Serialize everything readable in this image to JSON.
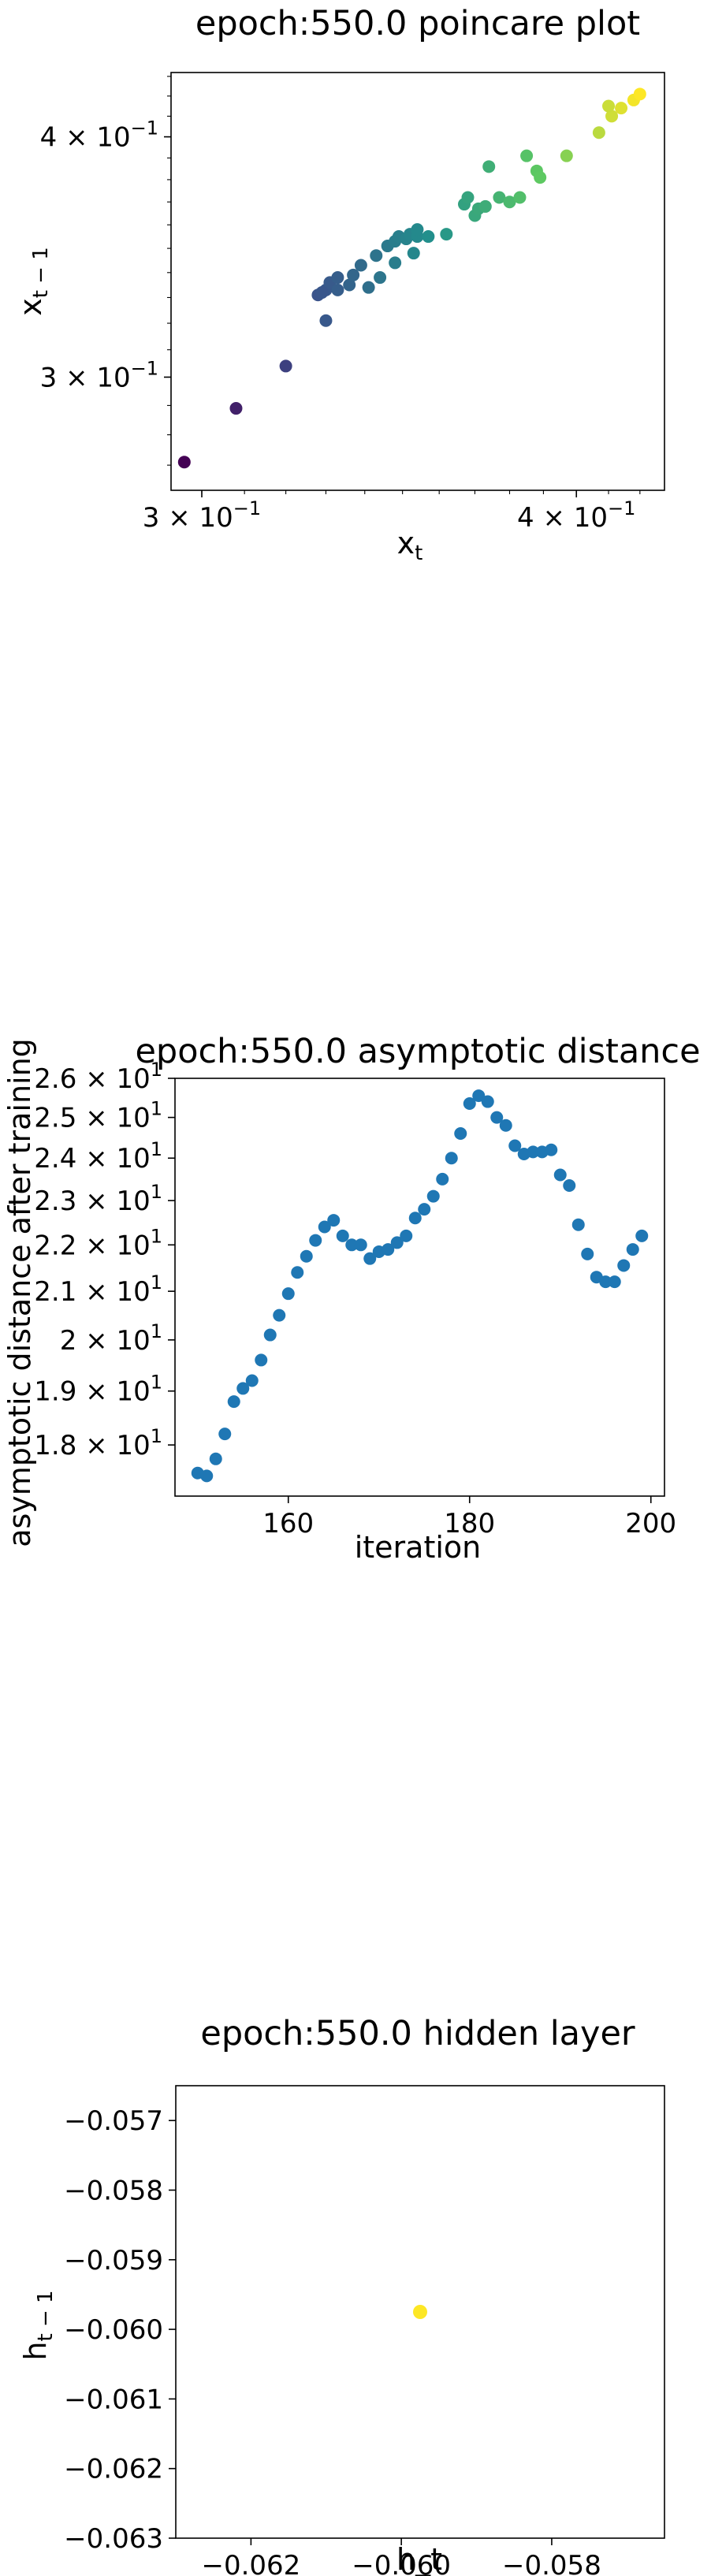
{
  "chart_data": [
    {
      "type": "scatter",
      "title": "epoch:550.0 poincare plot",
      "xlabel": "x_t",
      "ylabel": "x_{t-1}",
      "xscale": "log",
      "yscale": "log",
      "xlim": [
        0.293,
        0.428
      ],
      "ylim": [
        0.262,
        0.432
      ],
      "xticks": [
        {
          "value": 0.3,
          "label": "3 × 10^-1"
        },
        {
          "value": 0.4,
          "label": "4 × 10^-1"
        }
      ],
      "yticks": [
        {
          "value": 0.3,
          "label": "3 × 10^-1"
        },
        {
          "value": 0.4,
          "label": "4 × 10^-1"
        }
      ],
      "colormap": [
        "#440154",
        "#3b528b",
        "#21918c",
        "#5ec962",
        "#fde725"
      ],
      "color_by": "x_t value",
      "grid": false,
      "points": [
        {
          "x": 0.296,
          "y": 0.271
        },
        {
          "x": 0.308,
          "y": 0.289
        },
        {
          "x": 0.32,
          "y": 0.304
        },
        {
          "x": 0.33,
          "y": 0.321
        },
        {
          "x": 0.328,
          "y": 0.331
        },
        {
          "x": 0.33,
          "y": 0.333
        },
        {
          "x": 0.329,
          "y": 0.332
        },
        {
          "x": 0.331,
          "y": 0.336
        },
        {
          "x": 0.333,
          "y": 0.333
        },
        {
          "x": 0.333,
          "y": 0.338
        },
        {
          "x": 0.336,
          "y": 0.335
        },
        {
          "x": 0.337,
          "y": 0.339
        },
        {
          "x": 0.339,
          "y": 0.343
        },
        {
          "x": 0.341,
          "y": 0.334
        },
        {
          "x": 0.344,
          "y": 0.338
        },
        {
          "x": 0.343,
          "y": 0.347
        },
        {
          "x": 0.346,
          "y": 0.351
        },
        {
          "x": 0.348,
          "y": 0.344
        },
        {
          "x": 0.348,
          "y": 0.353
        },
        {
          "x": 0.349,
          "y": 0.355
        },
        {
          "x": 0.351,
          "y": 0.354
        },
        {
          "x": 0.352,
          "y": 0.356
        },
        {
          "x": 0.354,
          "y": 0.355
        },
        {
          "x": 0.354,
          "y": 0.358
        },
        {
          "x": 0.357,
          "y": 0.355
        },
        {
          "x": 0.353,
          "y": 0.348
        },
        {
          "x": 0.362,
          "y": 0.356
        },
        {
          "x": 0.367,
          "y": 0.369
        },
        {
          "x": 0.368,
          "y": 0.372
        },
        {
          "x": 0.37,
          "y": 0.364
        },
        {
          "x": 0.371,
          "y": 0.367
        },
        {
          "x": 0.373,
          "y": 0.368
        },
        {
          "x": 0.374,
          "y": 0.386
        },
        {
          "x": 0.377,
          "y": 0.372
        },
        {
          "x": 0.38,
          "y": 0.37
        },
        {
          "x": 0.383,
          "y": 0.372
        },
        {
          "x": 0.385,
          "y": 0.391
        },
        {
          "x": 0.388,
          "y": 0.384
        },
        {
          "x": 0.389,
          "y": 0.381
        },
        {
          "x": 0.397,
          "y": 0.391
        },
        {
          "x": 0.407,
          "y": 0.402
        },
        {
          "x": 0.411,
          "y": 0.41
        },
        {
          "x": 0.41,
          "y": 0.415
        },
        {
          "x": 0.414,
          "y": 0.414
        },
        {
          "x": 0.418,
          "y": 0.418
        },
        {
          "x": 0.42,
          "y": 0.421
        }
      ]
    },
    {
      "type": "scatter",
      "title": "epoch:550.0 asymptotic distance",
      "xlabel": "iteration",
      "ylabel": "asymptotic distance after training",
      "yscale": "log",
      "xlim": [
        147.5,
        201.5
      ],
      "ylim": [
        17.1,
        26.0
      ],
      "xticks": [
        {
          "value": 160,
          "label": "160"
        },
        {
          "value": 180,
          "label": "180"
        },
        {
          "value": 200,
          "label": "200"
        }
      ],
      "yticks": [
        {
          "value": 18,
          "label": "1.8 × 10^1"
        },
        {
          "value": 19,
          "label": "1.9 × 10^1"
        },
        {
          "value": 20,
          "label": "2 × 10^1"
        },
        {
          "value": 21,
          "label": "2.1 × 10^1"
        },
        {
          "value": 22,
          "label": "2.2 × 10^1"
        },
        {
          "value": 23,
          "label": "2.3 × 10^1"
        },
        {
          "value": 24,
          "label": "2.4 × 10^1"
        },
        {
          "value": 25,
          "label": "2.5 × 10^1"
        },
        {
          "value": 26,
          "label": "2.6 × 10^1"
        }
      ],
      "color": "#1f77b4",
      "grid": false,
      "x": [
        150,
        151,
        152,
        153,
        154,
        155,
        156,
        157,
        158,
        159,
        160,
        161,
        162,
        163,
        164,
        165,
        166,
        167,
        168,
        169,
        170,
        171,
        172,
        173,
        174,
        175,
        176,
        177,
        178,
        179,
        180,
        181,
        182,
        183,
        184,
        185,
        186,
        187,
        188,
        189,
        190,
        191,
        192,
        193,
        194,
        195,
        196,
        197,
        198,
        199
      ],
      "y": [
        17.5,
        17.45,
        17.75,
        18.2,
        18.8,
        19.05,
        19.2,
        19.6,
        20.1,
        20.5,
        20.95,
        21.4,
        21.75,
        22.1,
        22.4,
        22.55,
        22.2,
        22.0,
        22.0,
        21.7,
        21.85,
        21.9,
        22.05,
        22.2,
        22.6,
        22.8,
        23.1,
        23.5,
        24.0,
        24.6,
        25.35,
        25.55,
        25.4,
        25.0,
        24.8,
        24.3,
        24.1,
        24.15,
        24.15,
        24.2,
        23.6,
        23.35,
        22.45,
        21.8,
        21.3,
        21.2,
        21.2,
        21.55,
        21.9,
        22.2
      ]
    },
    {
      "type": "scatter",
      "title": "epoch:550.0 hidden layer",
      "xlabel": "h_t",
      "ylabel": "h_{t-1}",
      "xlim": [
        -0.063,
        -0.0565
      ],
      "ylim": [
        -0.063,
        -0.0565
      ],
      "xticks": [
        {
          "value": -0.062,
          "label": "−0.062"
        },
        {
          "value": -0.06,
          "label": "−0.060"
        },
        {
          "value": -0.058,
          "label": "−0.058"
        }
      ],
      "yticks": [
        {
          "value": -0.057,
          "label": "−0.057"
        },
        {
          "value": -0.058,
          "label": "−0.058"
        },
        {
          "value": -0.059,
          "label": "−0.059"
        },
        {
          "value": -0.06,
          "label": "−0.060"
        },
        {
          "value": -0.061,
          "label": "−0.061"
        },
        {
          "value": -0.062,
          "label": "−0.062"
        },
        {
          "value": -0.063,
          "label": "−0.063"
        }
      ],
      "color": "#fde725",
      "grid": false,
      "points": [
        {
          "x": -0.05975,
          "y": -0.05975
        }
      ]
    }
  ]
}
